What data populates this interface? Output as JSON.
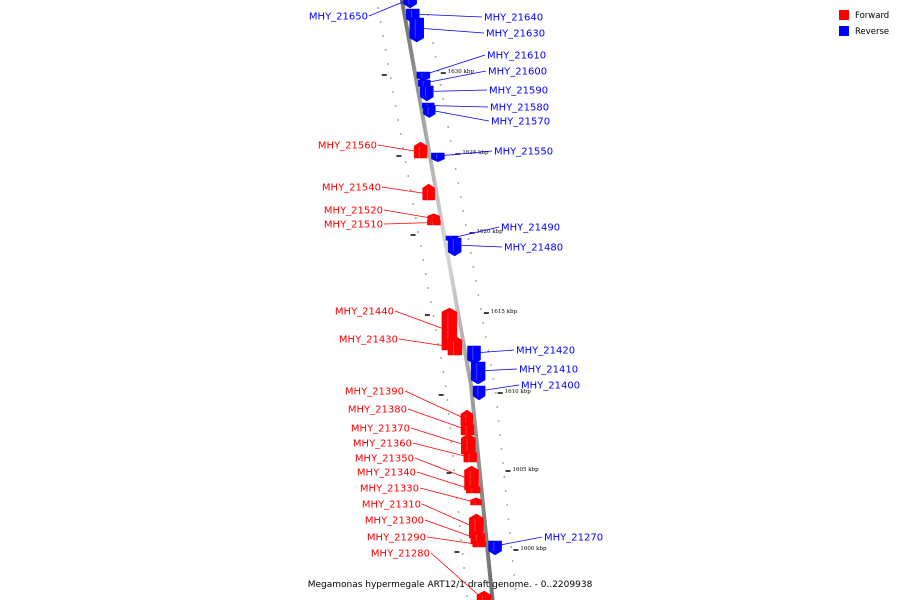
{
  "colors": {
    "forward": "#ff0000",
    "reverse": "#0000ff",
    "backbone": "#808080"
  },
  "legend": [
    {
      "label": "Forward",
      "color": "#ff0000"
    },
    {
      "label": "Reverse",
      "color": "#0000ff"
    }
  ],
  "caption": "Megamonas hypermegale ART12/1 draft genome. - 0..2209938",
  "scale_marks": [
    {
      "label": "1630 kbp",
      "pos": 1630
    },
    {
      "label": "1625 kbp",
      "pos": 1625
    },
    {
      "label": "1620 kbp",
      "pos": 1620
    },
    {
      "label": "1615 kbp",
      "pos": 1615
    },
    {
      "label": "1610 kbp",
      "pos": 1610
    },
    {
      "label": "1605 kbp",
      "pos": 1605
    },
    {
      "label": "1600 kbp",
      "pos": 1600
    }
  ],
  "genes": [
    {
      "name": "MHY_21650",
      "strand": "reverse"
    },
    {
      "name": "MHY_21640",
      "strand": "reverse"
    },
    {
      "name": "MHY_21630",
      "strand": "reverse"
    },
    {
      "name": "MHY_21610",
      "strand": "reverse"
    },
    {
      "name": "MHY_21600",
      "strand": "reverse"
    },
    {
      "name": "MHY_21590",
      "strand": "reverse"
    },
    {
      "name": "MHY_21580",
      "strand": "reverse"
    },
    {
      "name": "MHY_21570",
      "strand": "reverse"
    },
    {
      "name": "MHY_21560",
      "strand": "forward"
    },
    {
      "name": "MHY_21550",
      "strand": "reverse"
    },
    {
      "name": "MHY_21540",
      "strand": "forward"
    },
    {
      "name": "MHY_21520",
      "strand": "forward"
    },
    {
      "name": "MHY_21510",
      "strand": "forward"
    },
    {
      "name": "MHY_21490",
      "strand": "reverse"
    },
    {
      "name": "MHY_21480",
      "strand": "reverse"
    },
    {
      "name": "MHY_21440",
      "strand": "forward"
    },
    {
      "name": "MHY_21430",
      "strand": "forward"
    },
    {
      "name": "MHY_21420",
      "strand": "reverse"
    },
    {
      "name": "MHY_21410",
      "strand": "reverse"
    },
    {
      "name": "MHY_21400",
      "strand": "reverse"
    },
    {
      "name": "MHY_21390",
      "strand": "forward"
    },
    {
      "name": "MHY_21380",
      "strand": "forward"
    },
    {
      "name": "MHY_21370",
      "strand": "forward"
    },
    {
      "name": "MHY_21360",
      "strand": "forward"
    },
    {
      "name": "MHY_21350",
      "strand": "forward"
    },
    {
      "name": "MHY_21340",
      "strand": "forward"
    },
    {
      "name": "MHY_21330",
      "strand": "forward"
    },
    {
      "name": "MHY_21310",
      "strand": "forward"
    },
    {
      "name": "MHY_21300",
      "strand": "forward"
    },
    {
      "name": "MHY_21290",
      "strand": "forward"
    },
    {
      "name": "MHY_21280",
      "strand": "forward"
    },
    {
      "name": "MHY_21270",
      "strand": "reverse"
    }
  ]
}
